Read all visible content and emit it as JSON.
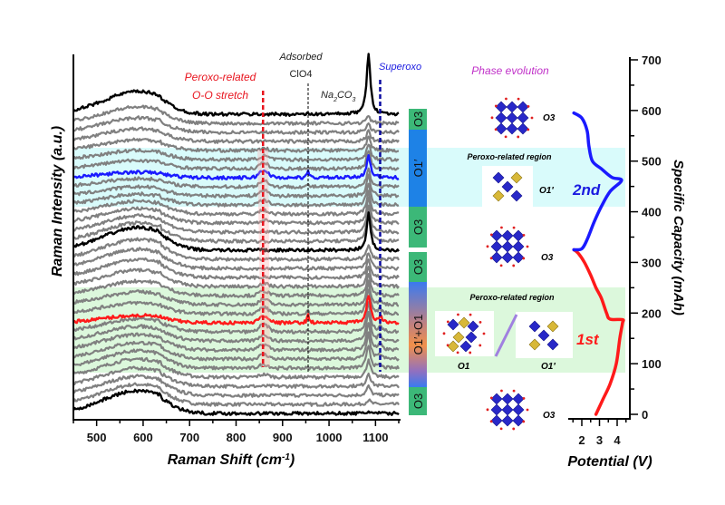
{
  "chart_data": [
    {
      "type": "line",
      "title": "",
      "xlabel": "Raman Shift (cm",
      "xlabel_sup": "-1",
      "xlabel_end": ")",
      "ylabel": "Raman Intensity (a.u.)",
      "xlim": [
        450,
        1150
      ],
      "xticks": [
        "500",
        "600",
        "700",
        "800",
        "900",
        "1000",
        "1100"
      ],
      "trace_offset_au": 1.0,
      "trace_count": 34,
      "trace_colors": {
        "gray": "#808080",
        "black": "#000000",
        "red": "#ff1a1a",
        "blue": "#1a1aff"
      },
      "traces": {
        "color": [
          "black",
          "gray",
          "gray",
          "gray",
          "gray",
          "gray",
          "gray",
          "gray",
          "gray",
          "gray",
          "red",
          "gray",
          "gray",
          "gray",
          "gray",
          "gray",
          "gray",
          "gray",
          "black",
          "gray",
          "gray",
          "gray",
          "gray",
          "gray",
          "gray",
          "gray",
          "blue",
          "gray",
          "gray",
          "gray",
          "gray",
          "gray",
          "gray",
          "black"
        ],
        "hump_600": [
          2.5,
          2.2,
          2.1,
          2.0,
          2.0,
          1.9,
          1.8,
          1.7,
          1.6,
          1.4,
          0.8,
          1.2,
          1.4,
          1.6,
          1.8,
          2.0,
          2.1,
          2.2,
          2.5,
          2.0,
          1.8,
          1.6,
          1.4,
          1.2,
          1.0,
          0.9,
          0.6,
          0.9,
          1.0,
          1.2,
          1.4,
          1.6,
          1.8,
          2.5
        ],
        "peak_1085": [
          0.2,
          0.5,
          1.0,
          1.5,
          2.0,
          2.5,
          2.8,
          3.0,
          3.2,
          3.2,
          3.0,
          2.8,
          2.6,
          2.4,
          2.2,
          2.0,
          1.8,
          1.6,
          4.0,
          3.5,
          3.0,
          2.8,
          2.6,
          2.4,
          2.2,
          2.0,
          2.5,
          2.0,
          1.8,
          1.5,
          1.2,
          1.0,
          0.8,
          6.5
        ],
        "peak_860": [
          0,
          0,
          0,
          0,
          0.3,
          0.4,
          0.5,
          0.6,
          0.7,
          0.8,
          0.8,
          0.7,
          0.6,
          0.5,
          0.3,
          0,
          0,
          0,
          0,
          0,
          0,
          0.3,
          0.4,
          0.5,
          0.6,
          0.7,
          0.8,
          0.6,
          0.4,
          0.2,
          0,
          0,
          0,
          0
        ],
        "peak_955": [
          0,
          0,
          0,
          0,
          0,
          0,
          0,
          0,
          0,
          0.3,
          0.9,
          0.3,
          0,
          0,
          0,
          0,
          0,
          0,
          0,
          0,
          0,
          0,
          0,
          0,
          0,
          0.2,
          0.7,
          0.2,
          0,
          0,
          0,
          0,
          0,
          0
        ],
        "peak_1110": [
          0,
          0,
          0,
          0,
          0,
          0.3,
          0.5,
          0.6,
          0.7,
          0.7,
          0.7,
          0.5,
          0.3,
          0,
          0,
          0,
          0,
          0,
          0,
          0,
          0,
          0,
          0,
          0,
          0,
          0,
          0,
          0,
          0,
          0,
          0,
          0,
          0,
          0
        ]
      },
      "reference_lines": [
        {
          "x": 858,
          "color": "#e8141e",
          "style": "dashed"
        },
        {
          "x": 955,
          "color": "#000000",
          "style": "dashed"
        },
        {
          "x": 1110,
          "color": "#0a0aa0",
          "style": "dashed"
        }
      ],
      "annotations": {
        "peroxo_line1": "Peroxo-related",
        "peroxo_line2": "O-O stretch",
        "adsorbed_line1": "Adsorbed",
        "adsorbed_line2": "ClO4",
        "carbonate": "Na",
        "carbonate_sub1": "2",
        "carbonate_mid": "CO",
        "carbonate_sub2": "3",
        "superoxo": "Superoxo"
      }
    },
    {
      "type": "line",
      "xlabel": "Potential (V)",
      "ylabel": "Specific Capacity (mAh)",
      "xlim": [
        1.3,
        4.7
      ],
      "ylim": [
        0,
        700
      ],
      "xticks": [
        "2",
        "3",
        "4"
      ],
      "yticks": [
        "0",
        "100",
        "200",
        "300",
        "400",
        "500",
        "600",
        "700"
      ],
      "series": [
        {
          "name": "1st",
          "color": "#ff1a1a",
          "points": [
            [
              2.8,
              0
            ],
            [
              3.2,
              30
            ],
            [
              3.6,
              60
            ],
            [
              3.95,
              100
            ],
            [
              4.15,
              150
            ],
            [
              4.3,
              180
            ],
            [
              4.3,
              187
            ],
            [
              3.6,
              188
            ],
            [
              3.4,
              200
            ],
            [
              3.1,
              230
            ],
            [
              2.8,
              250
            ],
            [
              2.5,
              275
            ],
            [
              2.15,
              300
            ],
            [
              1.8,
              318
            ],
            [
              1.55,
              325
            ]
          ]
        },
        {
          "name": "2nd",
          "color": "#1a1aff",
          "points": [
            [
              1.55,
              325
            ],
            [
              2.0,
              327
            ],
            [
              2.3,
              345
            ],
            [
              2.7,
              380
            ],
            [
              3.1,
              410
            ],
            [
              3.6,
              440
            ],
            [
              4.25,
              462
            ],
            [
              3.7,
              468
            ],
            [
              3.1,
              485
            ],
            [
              2.6,
              500
            ],
            [
              2.4,
              530
            ],
            [
              2.3,
              560
            ],
            [
              2.0,
              585
            ],
            [
              1.55,
              595
            ]
          ]
        }
      ]
    }
  ],
  "phase_bar": [
    {
      "label": "O3",
      "color": "#3cb878"
    },
    {
      "label": "O1′",
      "color": "#1e82e6"
    },
    {
      "label": "O3",
      "color": "#3cb878"
    },
    {
      "label": "O3",
      "color": "#3cb878"
    },
    {
      "label": "O1′+O1",
      "color": "gradient"
    },
    {
      "label": "O3",
      "color": "#3cb878"
    }
  ],
  "phase_evolution": {
    "title": "Phase evolution",
    "region_label_top": "Peroxo-related region",
    "region_label_bottom": "Peroxo-related region",
    "structures": [
      "O3",
      "O1′",
      "O3",
      "O1",
      "O1′",
      "O3"
    ],
    "cycle_2": "2nd",
    "cycle_1": "1st"
  },
  "colors": {
    "cyan_band": "#d9fbfb",
    "green_band": "#dcf8dc",
    "purple": "#c030c8"
  }
}
